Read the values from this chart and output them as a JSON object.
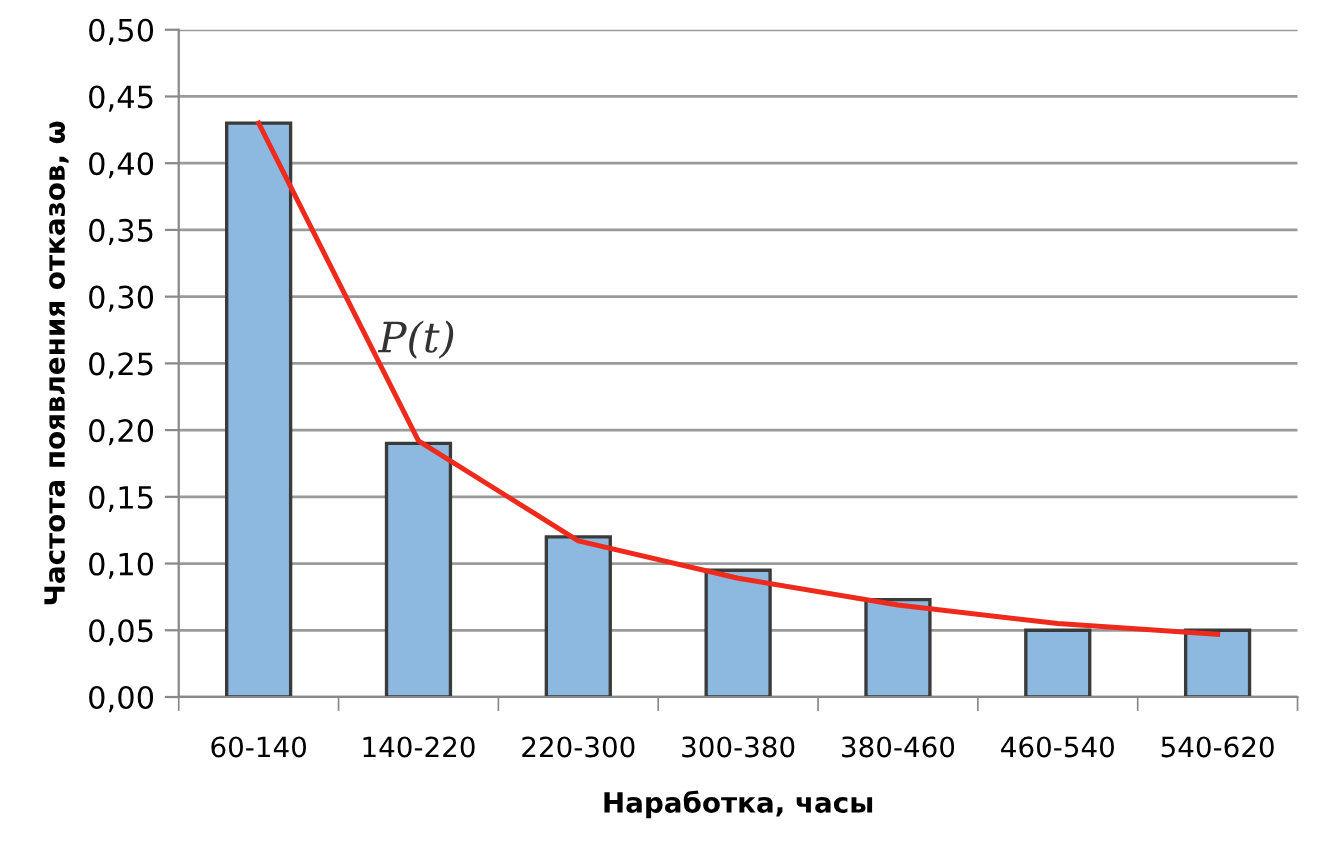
{
  "chart_data": {
    "type": "bar",
    "xlabel": "Наработка, часы",
    "ylabel": "Частота появления отказов, ω",
    "categories": [
      "60-140",
      "140-220",
      "220-300",
      "300-380",
      "380-460",
      "460-540",
      "540-620"
    ],
    "series": [
      {
        "color": "#8db8e0",
        "values": [
          0.43,
          0.19,
          0.12,
          0.095,
          0.073,
          0.05,
          0.05
        ]
      },
      {
        "type": "line",
        "name": "P(t)",
        "color": "#ee2a1c",
        "values": [
          0.43,
          0.192,
          0.117,
          0.089,
          0.069,
          0.055,
          0.047
        ]
      }
    ],
    "ylim": [
      0,
      0.5
    ],
    "yticks": [
      {
        "value": 0,
        "label": "0,00"
      },
      {
        "value": 0.05,
        "label": "0,05"
      },
      {
        "value": 0.1,
        "label": "0,10"
      },
      {
        "value": 0.15,
        "label": "0,15"
      },
      {
        "value": 0.2,
        "label": "0,20"
      },
      {
        "value": 0.25,
        "label": "0,25"
      },
      {
        "value": 0.3,
        "label": "0,30"
      },
      {
        "value": 0.35,
        "label": "0,35"
      },
      {
        "value": 0.4,
        "label": "0,40"
      },
      {
        "value": 0.45,
        "label": "0,45"
      },
      {
        "value": 0.5,
        "label": "0,50"
      }
    ],
    "grid": "y",
    "legend": false,
    "marker": "none",
    "line_style": "solid"
  }
}
